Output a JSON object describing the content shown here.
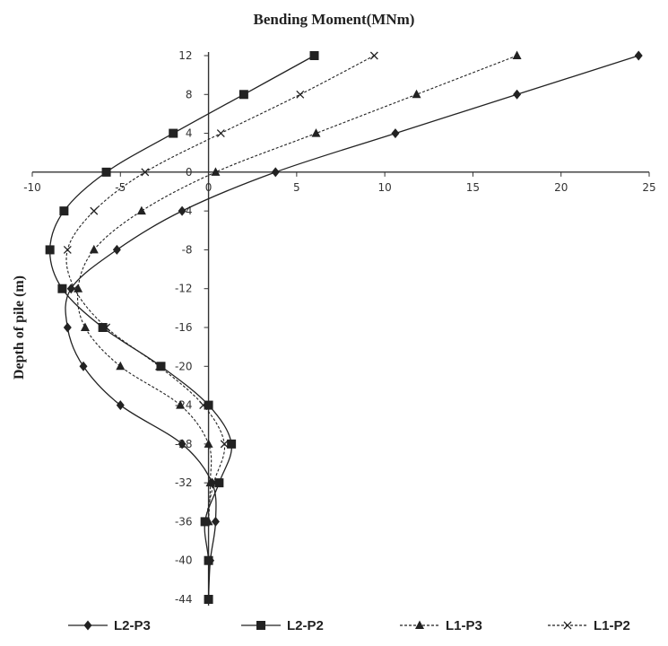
{
  "chart_data": {
    "type": "line",
    "title": "Bending Moment(MNm)",
    "xlabel": "",
    "ylabel": "Depth of pile (m)",
    "xlim": [
      -10,
      25
    ],
    "ylim": [
      -44,
      12
    ],
    "x_ticks": [
      "-10",
      "-5",
      "0",
      "5",
      "10",
      "15",
      "20",
      "25"
    ],
    "y_ticks": [
      "12",
      "8",
      "4",
      "0",
      "-4",
      "-8",
      "-12",
      "-16",
      "-20",
      "-24",
      "-28",
      "-32",
      "-36",
      "-40",
      "-44"
    ],
    "grid": false,
    "legend_position": "bottom",
    "series": [
      {
        "name": "L2-P3",
        "marker": "diamond",
        "line_style": "solid",
        "color": "#222222",
        "points": [
          {
            "x": 24.4,
            "y": 12
          },
          {
            "x": 17.5,
            "y": 8
          },
          {
            "x": 10.6,
            "y": 4
          },
          {
            "x": 3.8,
            "y": 0
          },
          {
            "x": -1.5,
            "y": -4
          },
          {
            "x": -5.2,
            "y": -8
          },
          {
            "x": -7.8,
            "y": -12
          },
          {
            "x": -8.0,
            "y": -16
          },
          {
            "x": -7.1,
            "y": -20
          },
          {
            "x": -5.0,
            "y": -24
          },
          {
            "x": -1.5,
            "y": -28
          },
          {
            "x": 0.2,
            "y": -32
          },
          {
            "x": 0.4,
            "y": -36
          },
          {
            "x": 0.1,
            "y": -40
          },
          {
            "x": 0.0,
            "y": -44
          }
        ]
      },
      {
        "name": "L2-P2",
        "marker": "square",
        "line_style": "solid",
        "color": "#222222",
        "points": [
          {
            "x": 6.0,
            "y": 12
          },
          {
            "x": 2.0,
            "y": 8
          },
          {
            "x": -2.0,
            "y": 4
          },
          {
            "x": -5.8,
            "y": 0
          },
          {
            "x": -8.2,
            "y": -4
          },
          {
            "x": -9.0,
            "y": -8
          },
          {
            "x": -8.3,
            "y": -12
          },
          {
            "x": -6.0,
            "y": -16
          },
          {
            "x": -2.7,
            "y": -20
          },
          {
            "x": 0.0,
            "y": -24
          },
          {
            "x": 1.3,
            "y": -28
          },
          {
            "x": 0.6,
            "y": -32
          },
          {
            "x": -0.2,
            "y": -36
          },
          {
            "x": 0.0,
            "y": -40
          },
          {
            "x": 0.0,
            "y": -44
          }
        ]
      },
      {
        "name": "L1-P3",
        "marker": "triangle",
        "line_style": "dashed",
        "color": "#222222",
        "points": [
          {
            "x": 17.5,
            "y": 12
          },
          {
            "x": 11.8,
            "y": 8
          },
          {
            "x": 6.1,
            "y": 4
          },
          {
            "x": 0.4,
            "y": 0
          },
          {
            "x": -3.8,
            "y": -4
          },
          {
            "x": -6.5,
            "y": -8
          },
          {
            "x": -7.4,
            "y": -12
          },
          {
            "x": -7.0,
            "y": -16
          },
          {
            "x": -5.0,
            "y": -20
          },
          {
            "x": -1.6,
            "y": -24
          },
          {
            "x": 0.0,
            "y": -28
          },
          {
            "x": 0.1,
            "y": -32
          },
          {
            "x": 0.0,
            "y": -36
          }
        ]
      },
      {
        "name": "L1-P2",
        "marker": "x",
        "line_style": "dashed",
        "color": "#222222",
        "points": [
          {
            "x": 9.4,
            "y": 12
          },
          {
            "x": 5.2,
            "y": 8
          },
          {
            "x": 0.7,
            "y": 4
          },
          {
            "x": -3.6,
            "y": 0
          },
          {
            "x": -6.5,
            "y": -4
          },
          {
            "x": -8.0,
            "y": -8
          },
          {
            "x": -7.6,
            "y": -12
          },
          {
            "x": -5.8,
            "y": -16
          },
          {
            "x": -2.8,
            "y": -20
          },
          {
            "x": -0.3,
            "y": -24
          },
          {
            "x": 0.9,
            "y": -28
          },
          {
            "x": 0.3,
            "y": -32
          },
          {
            "x": -0.2,
            "y": -36
          }
        ]
      }
    ]
  }
}
